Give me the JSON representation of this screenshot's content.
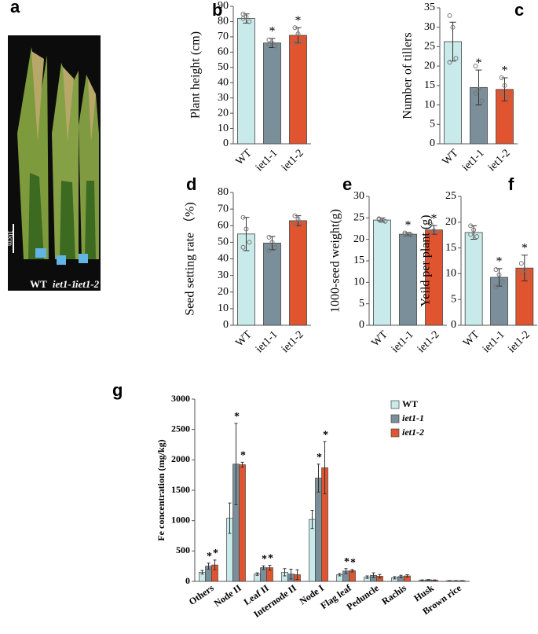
{
  "photo_panel": {
    "label": "a",
    "scale_bar": "10cm",
    "labels": [
      "WT",
      "iet1-1",
      "iet1-2"
    ]
  },
  "chart_data": [
    {
      "type": "bar",
      "panel": "b",
      "ylabel": "Plant height (cm)",
      "categories": [
        "WT",
        "iet1-1",
        "iet1-2"
      ],
      "values": [
        82,
        66,
        71
      ],
      "errors": [
        3,
        3,
        5
      ],
      "points": [
        [
          85,
          83,
          80,
          82
        ],
        [
          68,
          66,
          64,
          65
        ],
        [
          76,
          72,
          67,
          66
        ]
      ],
      "significance": [
        null,
        "*",
        "*"
      ],
      "colors": [
        "#c8eaea",
        "#7a8f99",
        "#e0542f"
      ],
      "ylim": [
        0,
        90
      ],
      "yticks": [
        0,
        10,
        20,
        30,
        40,
        50,
        60,
        70,
        80,
        90
      ]
    },
    {
      "type": "bar",
      "panel": "c",
      "ylabel": "Number of tillers",
      "categories": [
        "WT",
        "iet1-1",
        "iet1-2"
      ],
      "values": [
        26.3,
        14.5,
        14.0
      ],
      "errors": [
        5,
        4.5,
        3
      ],
      "points": [
        [
          33,
          30,
          22,
          21
        ],
        [
          20,
          14,
          11,
          13
        ],
        [
          17,
          15,
          12,
          13
        ]
      ],
      "significance": [
        null,
        "*",
        "*"
      ],
      "colors": [
        "#c8eaea",
        "#7a8f99",
        "#e0542f"
      ],
      "ylim": [
        0,
        35
      ],
      "yticks": [
        0,
        5,
        10,
        15,
        20,
        25,
        30,
        35
      ]
    },
    {
      "type": "bar",
      "panel": "d",
      "ylabel": "Seed setting rate （%)",
      "categories": [
        "WT",
        "iet1-1",
        "iet1-2"
      ],
      "values": [
        55,
        49.5,
        63
      ],
      "errors": [
        10,
        4,
        3
      ],
      "points": [
        [
          65,
          58,
          50,
          47
        ],
        [
          53,
          50,
          47,
          45
        ],
        [
          66,
          64,
          62,
          61
        ]
      ],
      "colors": [
        "#c8eaea",
        "#7a8f99",
        "#e0542f"
      ],
      "ylim": [
        0,
        80
      ],
      "yticks": [
        0,
        10,
        20,
        30,
        40,
        50,
        60,
        70,
        80
      ]
    },
    {
      "type": "bar",
      "panel": "e",
      "ylabel": "1000-seed weight(g)",
      "categories": [
        "WT",
        "iet1-1",
        "iet1-2"
      ],
      "values": [
        24.5,
        21.2,
        22.2
      ],
      "errors": [
        0.5,
        0.4,
        1
      ],
      "points": [
        [
          24.8,
          24.5,
          24.2,
          24.6
        ],
        [
          21.5,
          21.2,
          21,
          21.1
        ],
        [
          23.5,
          22,
          21.8,
          21.6
        ]
      ],
      "significance": [
        null,
        "*",
        "*"
      ],
      "colors": [
        "#c8eaea",
        "#7a8f99",
        "#e0542f"
      ],
      "ylim": [
        0,
        30
      ],
      "yticks": [
        0,
        5,
        10,
        15,
        20,
        25,
        30
      ]
    },
    {
      "type": "bar",
      "panel": "f",
      "ylabel": "Yeild per plant (g)",
      "categories": [
        "WT",
        "iet1-1",
        "iet1-2"
      ],
      "values": [
        18,
        9.3,
        11.1
      ],
      "errors": [
        1.3,
        1.7,
        2.5
      ],
      "points": [
        [
          19.3,
          18.5,
          17.2,
          17.6
        ],
        [
          10.8,
          9.8,
          8.5,
          7.5
        ],
        [
          12,
          10.8,
          9.5,
          10.2
        ]
      ],
      "significance": [
        null,
        "*",
        "*"
      ],
      "colors": [
        "#c8eaea",
        "#7a8f99",
        "#e0542f"
      ],
      "ylim": [
        0,
        25
      ],
      "yticks": [
        0,
        5,
        10,
        15,
        20,
        25
      ]
    },
    {
      "type": "grouped_bar",
      "panel": "g",
      "ylabel": "Fe concentration (mg/kg)",
      "categories": [
        "Others",
        "Node II",
        "Leaf II",
        "Internode II",
        "Node I",
        "Flag leaf",
        "Peduncle",
        "Rachis",
        "Husk",
        "Brown rice"
      ],
      "series": [
        {
          "name": "WT",
          "color": "#c8eaea",
          "values": [
            150,
            1040,
            120,
            150,
            1020,
            110,
            70,
            60,
            20,
            10
          ],
          "errors": [
            30,
            250,
            20,
            60,
            150,
            20,
            20,
            20,
            5,
            3
          ],
          "significance": [
            null,
            null,
            null,
            null,
            null,
            null,
            null,
            null,
            null,
            null
          ]
        },
        {
          "name": "iet1-1",
          "color": "#7a8f99",
          "values": [
            250,
            1930,
            225,
            120,
            1700,
            170,
            100,
            80,
            25,
            10
          ],
          "errors": [
            50,
            670,
            30,
            80,
            230,
            40,
            40,
            20,
            5,
            3
          ],
          "significance": [
            "*",
            "*",
            "*",
            null,
            "*",
            "*",
            null,
            null,
            null,
            null
          ]
        },
        {
          "name": "iet1-2",
          "color": "#e0542f",
          "values": [
            270,
            1920,
            225,
            110,
            1870,
            175,
            85,
            90,
            20,
            10
          ],
          "errors": [
            80,
            40,
            40,
            80,
            430,
            20,
            30,
            20,
            5,
            3
          ],
          "significance": [
            "*",
            "*",
            "*",
            null,
            "*",
            "*",
            null,
            null,
            null,
            null
          ]
        }
      ],
      "ylim": [
        0,
        3000
      ],
      "yticks": [
        0,
        500,
        1000,
        1500,
        2000,
        2500,
        3000
      ]
    }
  ]
}
